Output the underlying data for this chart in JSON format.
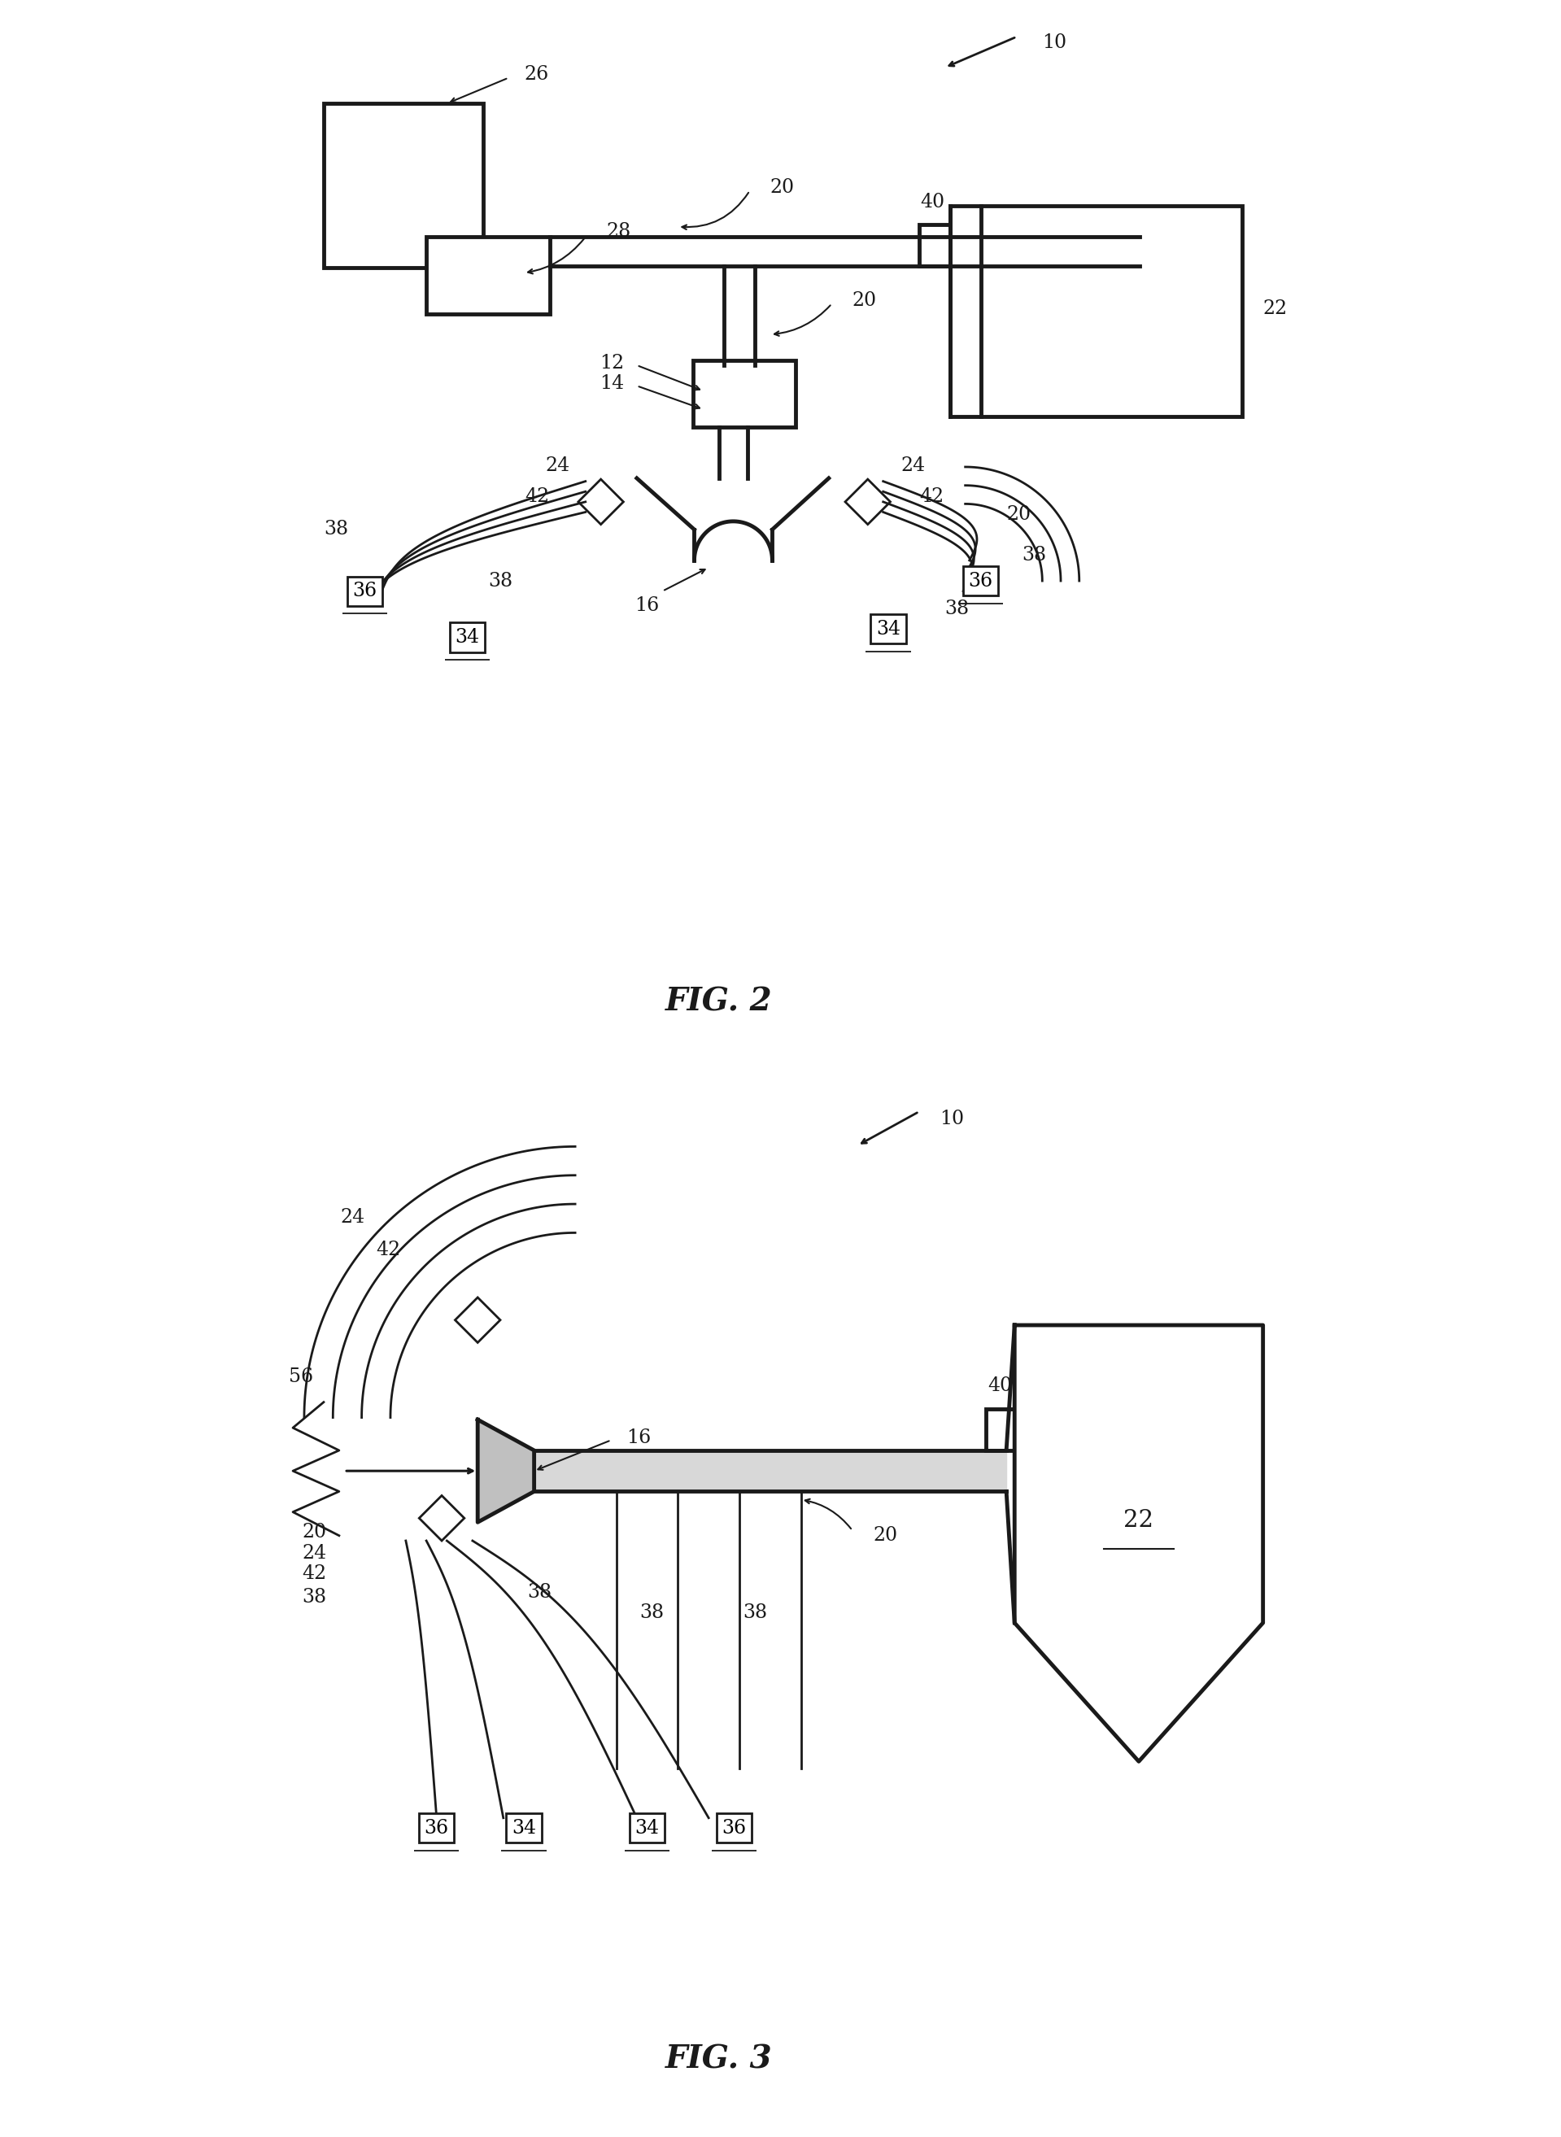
{
  "bg_color": "#ffffff",
  "line_color": "#1a1a1a",
  "lw": 2.0,
  "tlw": 3.5,
  "fs": 17,
  "title_fs": 28,
  "fig2_title": "FIG. 2",
  "fig3_title": "FIG. 3"
}
